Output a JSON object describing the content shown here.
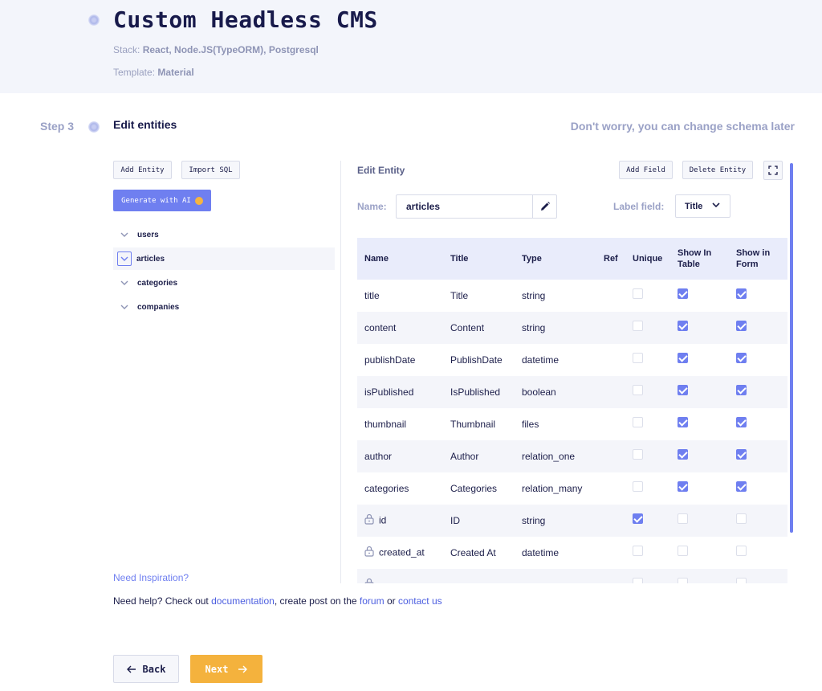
{
  "header": {
    "title": "Custom Headless CMS",
    "stack_label": "Stack:",
    "stack_value": "React, Node.JS(TypeORM), Postgresql",
    "template_label": "Template:",
    "template_value": "Material"
  },
  "step": {
    "label": "Step 3",
    "title": "Edit entities",
    "note": "Don't worry, you can change schema later"
  },
  "left_panel": {
    "add_entity": "Add Entity",
    "import_sql": "Import SQL",
    "generate_ai": "Generate with AI",
    "entities": [
      "users",
      "articles",
      "categories",
      "companies"
    ],
    "active_entity": "articles",
    "inspiration": "Need Inspiration?"
  },
  "edit_panel": {
    "heading": "Edit Entity",
    "add_field": "Add Field",
    "delete_entity": "Delete Entity",
    "name_label": "Name:",
    "name_value": "articles",
    "label_field_label": "Label field:",
    "label_field_value": "Title"
  },
  "table": {
    "columns": [
      "Name",
      "Title",
      "Type",
      "Ref",
      "Unique",
      "Show In Table",
      "Show in Form"
    ],
    "rows": [
      {
        "name": "title",
        "title": "Title",
        "type": "string",
        "ref": "",
        "unique": false,
        "show_table": true,
        "show_form": true,
        "locked": false
      },
      {
        "name": "content",
        "title": "Content",
        "type": "string",
        "ref": "",
        "unique": false,
        "show_table": true,
        "show_form": true,
        "locked": false
      },
      {
        "name": "publishDate",
        "title": "PublishDate",
        "type": "datetime",
        "ref": "",
        "unique": false,
        "show_table": true,
        "show_form": true,
        "locked": false
      },
      {
        "name": "isPublished",
        "title": "IsPublished",
        "type": "boolean",
        "ref": "",
        "unique": false,
        "show_table": true,
        "show_form": true,
        "locked": false
      },
      {
        "name": "thumbnail",
        "title": "Thumbnail",
        "type": "files",
        "ref": "",
        "unique": false,
        "show_table": true,
        "show_form": true,
        "locked": false
      },
      {
        "name": "author",
        "title": "Author",
        "type": "relation_one",
        "ref": "",
        "unique": false,
        "show_table": true,
        "show_form": true,
        "locked": false
      },
      {
        "name": "categories",
        "title": "Categories",
        "type": "relation_many",
        "ref": "",
        "unique": false,
        "show_table": true,
        "show_form": true,
        "locked": false
      },
      {
        "name": "id",
        "title": "ID",
        "type": "string",
        "ref": "",
        "unique": true,
        "show_table": false,
        "show_form": false,
        "locked": true
      },
      {
        "name": "created_at",
        "title": "Created At",
        "type": "datetime",
        "ref": "",
        "unique": false,
        "show_table": false,
        "show_form": false,
        "locked": true
      },
      {
        "name": "",
        "title": "",
        "type": "",
        "ref": "",
        "unique": false,
        "show_table": false,
        "show_form": false,
        "locked": true
      }
    ]
  },
  "help": {
    "prefix": "Need help? Check out",
    "documentation": "documentation",
    "middle": ", create post on the",
    "forum": "forum",
    "or": "or",
    "contact": "contact us"
  },
  "nav": {
    "back": "Back",
    "next": "Next"
  },
  "colors": {
    "accent": "#6f7ff0",
    "next_button": "#f4b23d",
    "header_bg": "#f3f5fb"
  }
}
